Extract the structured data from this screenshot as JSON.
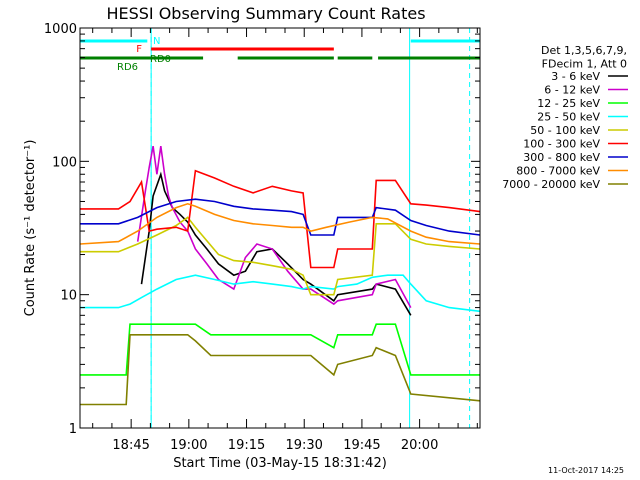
{
  "chart_data": {
    "type": "line",
    "title": "HESSI Observing Summary Count Rates",
    "xlabel": "Start Time (03-May-15 18:31:42)",
    "ylabel": "Count Rate (s⁻¹ detector⁻¹)",
    "ylog": true,
    "ylim": [
      1,
      1000
    ],
    "xlim_minutes": [
      0,
      104
    ],
    "x_ticks": [
      {
        "label": "18:45",
        "minutes": 13.3
      },
      {
        "label": "19:00",
        "minutes": 28.3
      },
      {
        "label": "19:15",
        "minutes": 43.3
      },
      {
        "label": "19:30",
        "minutes": 58.3
      },
      {
        "label": "19:45",
        "minutes": 73.3
      },
      {
        "label": "20:00",
        "minutes": 88.3
      }
    ],
    "y_ticks": [
      {
        "label": "1",
        "value": 1
      },
      {
        "label": "10",
        "value": 10
      },
      {
        "label": "100",
        "value": 100
      },
      {
        "label": "1000",
        "value": 1000
      }
    ],
    "legend_header": [
      "Det 1,3,5,6,7,9,",
      "FDecim 1, Att 0"
    ],
    "legend_position": "right",
    "timestamp": "11-Oct-2017 14:25",
    "vlines_minutes": [
      0,
      18.5,
      85.7,
      104
    ],
    "dashed_vlines_minutes": [
      18.5,
      101.3
    ],
    "flags": [
      {
        "label": "N",
        "color": "#00ffff",
        "row": 1,
        "segments": [
          [
            0,
            17.5
          ],
          [
            86,
            104
          ]
        ]
      },
      {
        "label": "F",
        "color": "#ff0000",
        "row": 2,
        "segments": [
          [
            18.5,
            66
          ]
        ]
      },
      {
        "label": "RD0",
        "color": "#008000",
        "row": 3,
        "segments": [
          [
            0,
            32
          ],
          [
            41,
            66
          ],
          [
            67,
            76
          ],
          [
            77.5,
            104
          ]
        ]
      },
      {
        "label": "RD6",
        "color": "#008000",
        "row": 3,
        "segments": []
      }
    ],
    "series": [
      {
        "name": "3 - 6 keV",
        "color": "#000000",
        "x": [
          0,
          13,
          16,
          18,
          19,
          21,
          22,
          24,
          26,
          28,
          30,
          33,
          36,
          40,
          43,
          46,
          50,
          54,
          58,
          60,
          66,
          67,
          76,
          77,
          82,
          86,
          88
        ],
        "y": [
          null,
          null,
          12,
          30,
          55,
          80,
          60,
          45,
          40,
          35,
          28,
          22,
          17,
          14,
          15,
          21,
          22,
          17,
          13,
          12,
          9,
          10,
          11,
          12,
          11,
          7,
          null
        ]
      },
      {
        "name": "6 - 12 keV",
        "color": "#cc00cc",
        "x": [
          0,
          13,
          15,
          17,
          18,
          19,
          20,
          21,
          22,
          23,
          24,
          26,
          28,
          30,
          33,
          36,
          40,
          43,
          46,
          50,
          54,
          58,
          60,
          66,
          67,
          76,
          77,
          82,
          86,
          88
        ],
        "y": [
          null,
          null,
          25,
          60,
          90,
          130,
          80,
          130,
          80,
          55,
          45,
          35,
          30,
          22,
          17,
          13,
          11,
          19,
          24,
          22,
          15,
          11,
          11,
          8.5,
          9,
          10,
          12,
          13,
          8,
          null
        ]
      },
      {
        "name": "12 - 25 keV",
        "color": "#00ff00",
        "x": [
          0,
          12,
          13,
          28,
          30,
          34,
          36,
          58,
          60,
          66,
          67,
          76,
          77,
          82,
          86,
          104
        ],
        "y": [
          2.5,
          2.5,
          6,
          6,
          6,
          5,
          5,
          5,
          5,
          4,
          5,
          5,
          6,
          6,
          2.5,
          2.5
        ]
      },
      {
        "name": "25 - 50 keV",
        "color": "#00ffff",
        "x": [
          0,
          10,
          13,
          16,
          20,
          25,
          30,
          35,
          40,
          45,
          50,
          55,
          58,
          60,
          66,
          67,
          72,
          76,
          80,
          84,
          86,
          90,
          96,
          104
        ],
        "y": [
          8,
          8,
          8.5,
          9.5,
          11,
          13,
          14,
          13,
          12,
          12.5,
          12,
          11.5,
          11,
          11.5,
          11,
          11.5,
          12,
          13.5,
          14,
          14,
          12,
          9,
          8,
          7.5
        ]
      },
      {
        "name": "50 - 100 keV",
        "color": "#cccc00",
        "x": [
          0,
          10,
          15,
          20,
          25,
          28,
          30,
          36,
          40,
          45,
          50,
          55,
          58,
          60,
          66,
          67,
          76,
          77,
          82,
          86,
          90,
          96,
          104
        ],
        "y": [
          21,
          21,
          24,
          28,
          33,
          38,
          32,
          20,
          18,
          17.5,
          16.5,
          15.5,
          14,
          10,
          10,
          13,
          14,
          34,
          34,
          26,
          24,
          23,
          22
        ]
      },
      {
        "name": "100 - 300 keV",
        "color": "#ff0000",
        "x": [
          0,
          10,
          13,
          16,
          18,
          20,
          25,
          28,
          30,
          35,
          40,
          45,
          50,
          55,
          58,
          60,
          66,
          67,
          76,
          77,
          82,
          86,
          90,
          96,
          104
        ],
        "y": [
          44,
          44,
          50,
          70,
          30,
          31,
          32,
          30,
          85,
          75,
          65,
          58,
          65,
          60,
          58,
          16,
          16,
          22,
          22,
          72,
          72,
          48,
          47,
          45,
          42
        ]
      },
      {
        "name": "300 - 800 keV",
        "color": "#0000cc",
        "x": [
          0,
          10,
          15,
          20,
          25,
          30,
          35,
          40,
          45,
          50,
          55,
          58,
          60,
          66,
          67,
          76,
          77,
          82,
          86,
          90,
          96,
          104
        ],
        "y": [
          34,
          34,
          38,
          45,
          50,
          52,
          50,
          46,
          44,
          43,
          42,
          40,
          28,
          28,
          38,
          38,
          45,
          43,
          36,
          33,
          30,
          28
        ]
      },
      {
        "name": "800 - 7000 keV",
        "color": "#ff8c00",
        "x": [
          0,
          10,
          15,
          20,
          25,
          28,
          30,
          35,
          40,
          45,
          50,
          55,
          58,
          60,
          64,
          70,
          76,
          80,
          86,
          90,
          96,
          104
        ],
        "y": [
          24,
          25,
          30,
          38,
          45,
          48,
          46,
          40,
          36,
          34,
          33,
          32,
          32,
          30,
          32,
          35,
          38,
          37,
          30,
          27,
          25,
          24
        ]
      },
      {
        "name": "7000 - 20000 keV",
        "color": "#808000",
        "x": [
          0,
          12,
          13,
          28,
          30,
          34,
          36,
          58,
          60,
          66,
          67,
          76,
          77,
          82,
          86,
          104
        ],
        "y": [
          1.5,
          1.5,
          5,
          5,
          4.5,
          3.5,
          3.5,
          3.5,
          3.5,
          2.5,
          3,
          3.5,
          4,
          3.5,
          1.8,
          1.6
        ]
      }
    ]
  }
}
